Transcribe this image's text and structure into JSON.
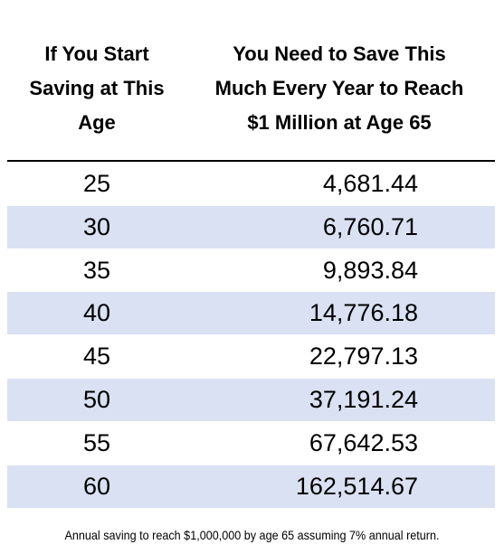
{
  "header": {
    "columns": [
      {
        "lines": [
          "If You Start",
          "Saving at This",
          "Age"
        ]
      },
      {
        "lines": [
          "You Need to Save This",
          "Much Every Year to Reach",
          "$1 Million at Age 65"
        ]
      }
    ]
  },
  "table": {
    "rows": [
      [
        25,
        "4,681.44"
      ],
      [
        30,
        "6,760.71"
      ],
      [
        35,
        "9,893.84"
      ],
      [
        40,
        "14,776.18"
      ],
      [
        45,
        "22,797.13"
      ],
      [
        50,
        "37,191.24"
      ],
      [
        55,
        "67,642.53"
      ],
      [
        60,
        "162,514.67"
      ]
    ]
  },
  "footnote": "Annual saving to reach $1,000,000 by age 65 assuming 7% annual return."
}
